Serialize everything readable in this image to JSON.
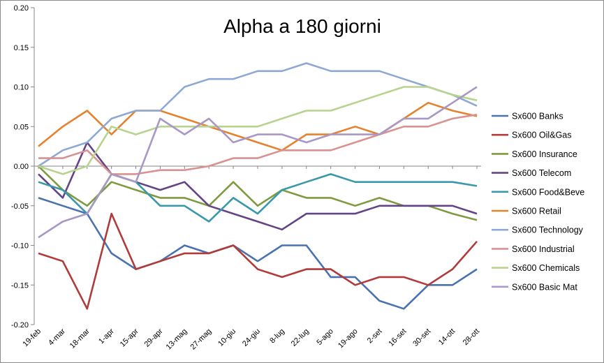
{
  "chart_data": {
    "type": "line",
    "title": "Alpha a 180 giorni",
    "xlabel": "",
    "ylabel": "",
    "ylim": [
      -0.2,
      0.2
    ],
    "y_ticks": [
      "0.20",
      "0.15",
      "0.10",
      "0.05",
      "0.00",
      "-0.05",
      "-0.10",
      "-0.15",
      "-0.20"
    ],
    "categories": [
      "19-feb",
      "4-mar",
      "18-mar",
      "1-apr",
      "15-apr",
      "29-apr",
      "13-mag",
      "27-mag",
      "10-giu",
      "24-giu",
      "8-lug",
      "22-lug",
      "5-ago",
      "19-ago",
      "2-set",
      "16-set",
      "30-set",
      "14-ott",
      "28-ott"
    ],
    "grid": false,
    "legend_position": "right",
    "series": [
      {
        "name": "Sx600 Banks",
        "color": "#4a72b0",
        "values": [
          -0.04,
          -0.05,
          -0.06,
          -0.11,
          -0.13,
          -0.12,
          -0.1,
          -0.11,
          -0.1,
          -0.12,
          -0.1,
          -0.1,
          -0.14,
          -0.14,
          -0.17,
          -0.18,
          -0.15,
          -0.15,
          -0.13
        ]
      },
      {
        "name": "Sx600 Oil&Gas",
        "color": "#b03b3a",
        "values": [
          -0.11,
          -0.12,
          -0.18,
          -0.06,
          -0.13,
          -0.12,
          -0.11,
          -0.11,
          -0.1,
          -0.13,
          -0.14,
          -0.13,
          -0.13,
          -0.15,
          -0.14,
          -0.14,
          -0.15,
          -0.13,
          -0.095
        ]
      },
      {
        "name": "Sx600 Insurance",
        "color": "#7f9b3f",
        "values": [
          0.0,
          -0.03,
          -0.05,
          -0.02,
          -0.03,
          -0.04,
          -0.04,
          -0.05,
          -0.02,
          -0.05,
          -0.03,
          -0.04,
          -0.04,
          -0.05,
          -0.04,
          -0.05,
          -0.05,
          -0.06,
          -0.068
        ]
      },
      {
        "name": "Sx600 Telecom",
        "color": "#634487",
        "values": [
          -0.01,
          -0.04,
          0.03,
          -0.01,
          -0.02,
          -0.03,
          -0.02,
          -0.05,
          -0.06,
          -0.07,
          -0.08,
          -0.06,
          -0.06,
          -0.06,
          -0.05,
          -0.05,
          -0.05,
          -0.05,
          -0.06
        ]
      },
      {
        "name": "Sx600 Food&Beve",
        "color": "#3a98ab",
        "values": [
          -0.02,
          -0.03,
          -0.06,
          -0.01,
          -0.02,
          -0.05,
          -0.05,
          -0.07,
          -0.04,
          -0.06,
          -0.03,
          -0.02,
          -0.01,
          -0.02,
          -0.02,
          -0.02,
          -0.02,
          -0.02,
          -0.025
        ]
      },
      {
        "name": "Sx600 Retail",
        "color": "#e5822e",
        "values": [
          0.025,
          0.05,
          0.07,
          0.04,
          0.07,
          0.07,
          0.06,
          0.05,
          0.04,
          0.03,
          0.02,
          0.04,
          0.04,
          0.05,
          0.04,
          0.06,
          0.08,
          0.07,
          0.063
        ]
      },
      {
        "name": "Sx600 Technology",
        "color": "#8ea8d5",
        "values": [
          0.0,
          0.02,
          0.03,
          0.06,
          0.07,
          0.07,
          0.1,
          0.11,
          0.11,
          0.12,
          0.12,
          0.13,
          0.12,
          0.12,
          0.12,
          0.11,
          0.1,
          0.09,
          0.076
        ]
      },
      {
        "name": "Sx600 Industrial",
        "color": "#d99290",
        "values": [
          0.01,
          0.01,
          0.02,
          -0.01,
          -0.01,
          -0.005,
          -0.005,
          0.0,
          0.01,
          0.01,
          0.02,
          0.02,
          0.02,
          0.03,
          0.04,
          0.05,
          0.05,
          0.06,
          0.065
        ]
      },
      {
        "name": "Sx600 Chemicals",
        "color": "#b7d38e",
        "values": [
          0.0,
          -0.01,
          0.0,
          0.05,
          0.04,
          0.05,
          0.05,
          0.05,
          0.05,
          0.05,
          0.06,
          0.07,
          0.07,
          0.08,
          0.09,
          0.1,
          0.1,
          0.09,
          0.083
        ]
      },
      {
        "name": "Sx600 Basic Mat",
        "color": "#a898c4",
        "values": [
          -0.09,
          -0.07,
          -0.06,
          -0.01,
          -0.02,
          0.06,
          0.04,
          0.06,
          0.03,
          0.04,
          0.04,
          0.03,
          0.04,
          0.04,
          0.04,
          0.06,
          0.06,
          0.08,
          0.1
        ]
      }
    ]
  }
}
